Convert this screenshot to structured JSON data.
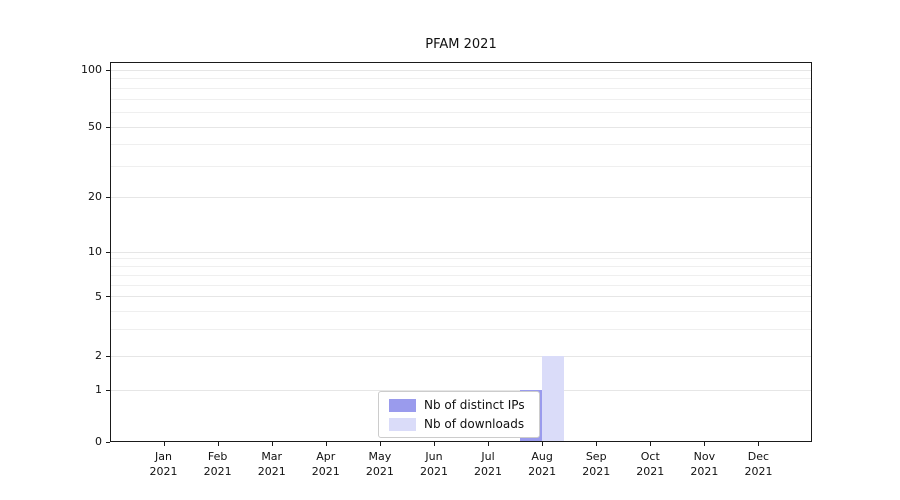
{
  "chart_data": {
    "type": "bar",
    "title": "PFAM 2021",
    "categories": [
      {
        "month": "Jan",
        "year": "2021"
      },
      {
        "month": "Feb",
        "year": "2021"
      },
      {
        "month": "Mar",
        "year": "2021"
      },
      {
        "month": "Apr",
        "year": "2021"
      },
      {
        "month": "May",
        "year": "2021"
      },
      {
        "month": "Jun",
        "year": "2021"
      },
      {
        "month": "Jul",
        "year": "2021"
      },
      {
        "month": "Aug",
        "year": "2021"
      },
      {
        "month": "Sep",
        "year": "2021"
      },
      {
        "month": "Oct",
        "year": "2021"
      },
      {
        "month": "Nov",
        "year": "2021"
      },
      {
        "month": "Dec",
        "year": "2021"
      }
    ],
    "series": [
      {
        "name": "Nb of distinct IPs",
        "color": "#9a9bed",
        "values": [
          0,
          0,
          0,
          0,
          0,
          0,
          0,
          1,
          0,
          0,
          0,
          0
        ]
      },
      {
        "name": "Nb of downloads",
        "color": "#dadcf9",
        "values": [
          0,
          0,
          0,
          0,
          0,
          0,
          0,
          2,
          0,
          0,
          0,
          0
        ]
      }
    ],
    "yscale": "symlog",
    "yticks": [
      0,
      1,
      2,
      5,
      10,
      20,
      50,
      100
    ],
    "ylim": [
      0,
      110
    ],
    "xlabel": "",
    "ylabel": "",
    "grid": "horizontal (major + log minors)",
    "legend": {
      "position": "lower-center",
      "items": [
        "Nb of distinct IPs",
        "Nb of downloads"
      ]
    }
  },
  "colors": {
    "background": "#ffffff",
    "axis": "#1a1a1a",
    "grid_major": "#e6e6e6",
    "grid_minor": "#efefef",
    "legend_border": "#cccccc",
    "text": "#111111"
  }
}
